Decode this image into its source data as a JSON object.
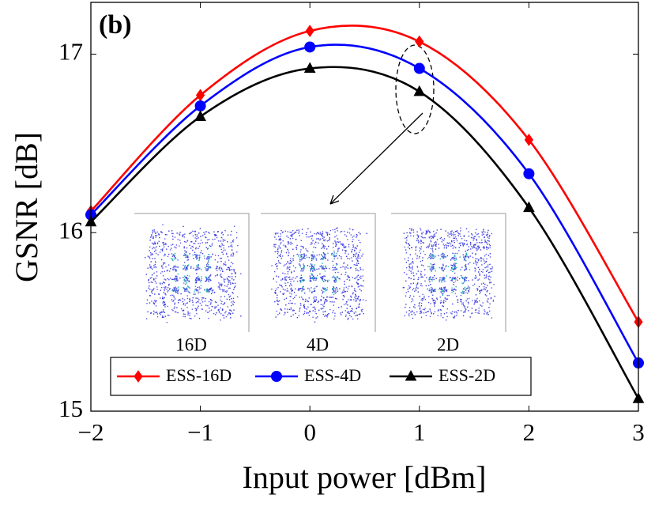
{
  "chart_data": {
    "type": "line",
    "annotation": "(b)",
    "x_label": "Input power [dBm]",
    "y_label": "GSNR [dB]",
    "x": [
      -2,
      -1,
      0,
      1,
      2,
      3
    ],
    "series": [
      {
        "name": "ESS-16D",
        "color": "#ff0000",
        "marker": "diamond",
        "values": [
          16.12,
          16.77,
          17.13,
          17.07,
          16.52,
          15.5
        ]
      },
      {
        "name": "ESS-4D",
        "color": "#0000ff",
        "marker": "circle",
        "values": [
          16.1,
          16.71,
          17.04,
          16.92,
          16.33,
          15.27
        ]
      },
      {
        "name": "ESS-2D",
        "color": "#000000",
        "marker": "triangle",
        "values": [
          16.06,
          16.65,
          16.92,
          16.79,
          16.14,
          15.07
        ]
      }
    ],
    "xlim": [
      -2,
      3
    ],
    "xticks": [
      {
        "value": -2,
        "label": "−2"
      },
      {
        "value": -1,
        "label": "−1"
      },
      0,
      1,
      2,
      3
    ],
    "ylim": [
      15,
      17.29
    ],
    "yticks": [
      15,
      16,
      17
    ],
    "insets": [
      "16D",
      "4D",
      "2D"
    ]
  }
}
